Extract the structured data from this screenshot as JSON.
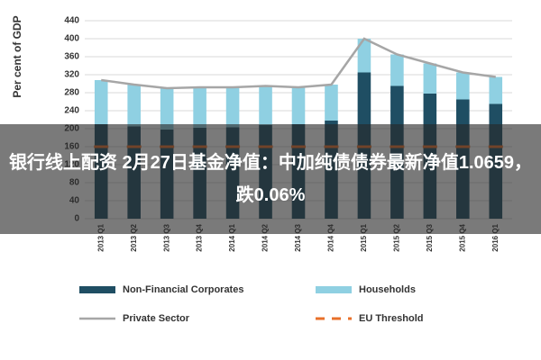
{
  "chart_data": {
    "type": "stacked_bar_line",
    "y_label": "Per cent of GDP",
    "categories": [
      "2013 Q1",
      "2013 Q2",
      "2013 Q3",
      "2013 Q4",
      "2014 Q1",
      "2014 Q2",
      "2014 Q3",
      "2014 Q4",
      "2015 Q1",
      "2015 Q2",
      "2015 Q3",
      "2015 Q4",
      "2016 Q1"
    ],
    "series": [
      {
        "name": "Non-Financial Corporates",
        "color": "#1f4e63",
        "kind": "bar",
        "values": [
          210,
          205,
          198,
          202,
          203,
          208,
          210,
          218,
          325,
          295,
          278,
          265,
          255
        ]
      },
      {
        "name": "Households",
        "color": "#8fd0e2",
        "kind": "bar",
        "values": [
          98,
          93,
          92,
          90,
          89,
          87,
          82,
          80,
          75,
          70,
          67,
          60,
          60
        ]
      },
      {
        "name": "Private Sector",
        "color": "#a6a6a6",
        "kind": "line",
        "values": [
          308,
          298,
          290,
          292,
          292,
          295,
          292,
          298,
          400,
          365,
          345,
          325,
          315
        ]
      },
      {
        "name": "EU Threshold",
        "color": "#e8702a",
        "kind": "dash",
        "values": [
          160,
          160,
          160,
          160,
          160,
          160,
          160,
          160,
          160,
          160,
          160,
          160,
          160
        ]
      }
    ],
    "ylim": [
      0,
      440
    ],
    "yticks": [
      0,
      40,
      80,
      120,
      160,
      200,
      240,
      280,
      320,
      360,
      400,
      440
    ],
    "grid": true,
    "overlay": "银行线上配资 2月27日基金净值：中加纯债债券最新净值1.0659，跌0.06%"
  }
}
